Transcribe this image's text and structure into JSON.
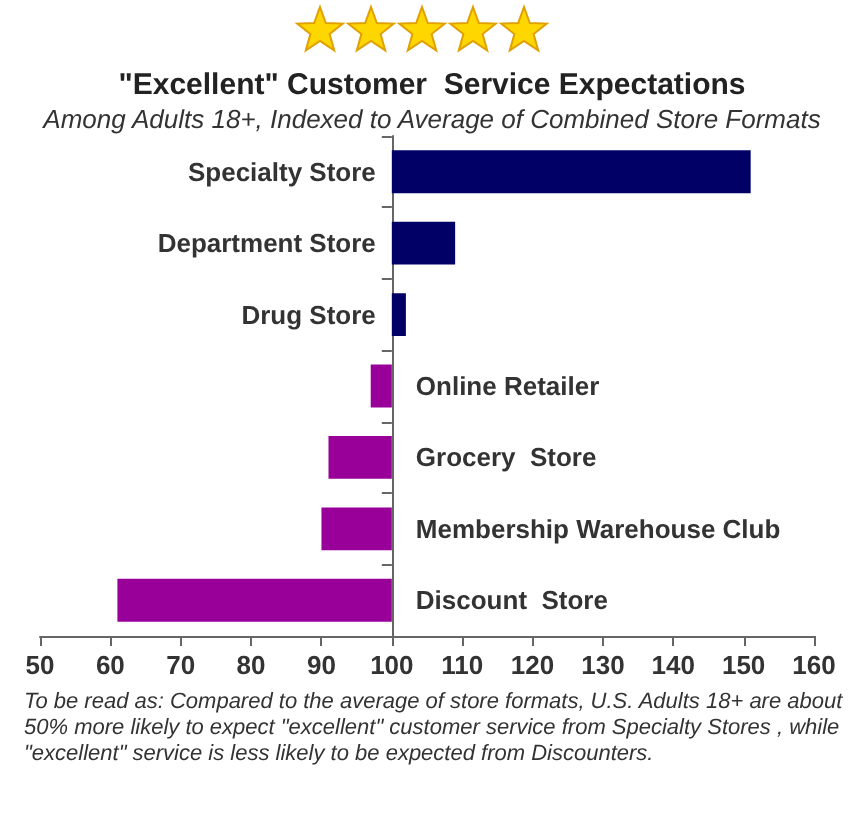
{
  "chart_data": {
    "type": "bar",
    "orientation": "horizontal",
    "title": "\"Excellent\" Customer  Service Expectations",
    "subtitle": "Among Adults 18+, Indexed to Average of Combined Store Formats",
    "categories": [
      "Specialty Store",
      "Department Store",
      "Drug Store",
      "Online Retailer",
      "Grocery  Store",
      "Membership Warehouse Club",
      "Discount  Store"
    ],
    "base": [
      100,
      100,
      100,
      100,
      100,
      100,
      100
    ],
    "values": [
      51,
      9,
      2,
      -3,
      -9,
      -10,
      -39
    ],
    "colors": [
      "#000066",
      "#000066",
      "#000066",
      "#990099",
      "#990099",
      "#990099",
      "#990099"
    ],
    "xlim": [
      50,
      160
    ],
    "xticks": [
      50,
      60,
      70,
      80,
      90,
      100,
      110,
      120,
      130,
      140,
      150,
      160
    ],
    "grid": false,
    "annotations": [
      "To be read as: Compared to the average of store formats, U.S. Adults 18+ are about 50% more likely to expect \"excellent\" customer service from Specialty Stores , while \"excellent\" service is less likely to be expected from Discounters."
    ]
  }
}
